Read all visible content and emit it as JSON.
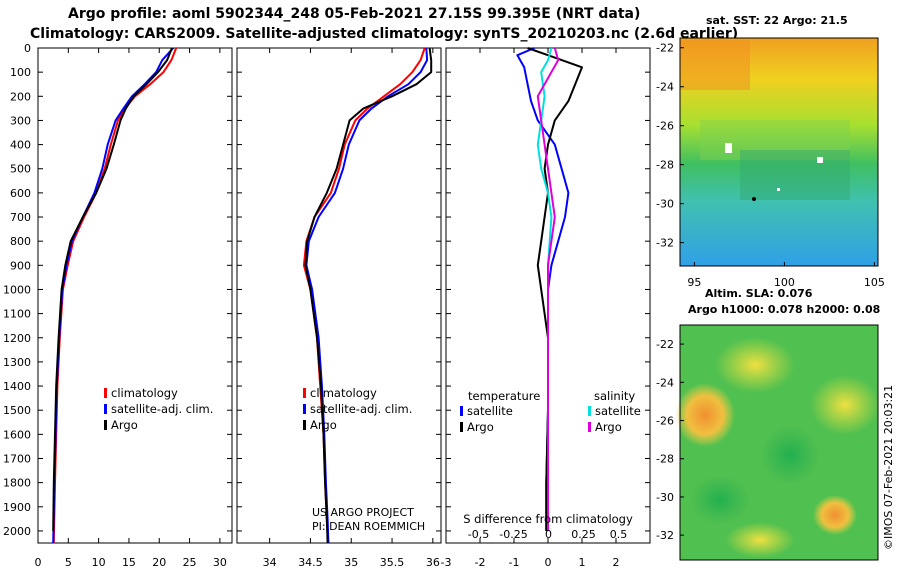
{
  "header": {
    "line1": "Argo profile: aoml 5902344_248 05-Feb-2021 27.15S 99.395E (NRT data)",
    "line2": "Climatology: CARS2009. Satellite-adjusted climatology: synTS_20210203.nc (2.6d earlier)"
  },
  "colors": {
    "climatology": "#ff0000",
    "satellite": "#0000ff",
    "argo": "#000000",
    "sat_salinity": "#00e0e0",
    "argo_salinity": "#dd00dd"
  },
  "depth_axis": {
    "ticks": [
      0,
      100,
      200,
      300,
      400,
      500,
      600,
      700,
      800,
      900,
      1000,
      1100,
      1200,
      1300,
      1400,
      1500,
      1600,
      1700,
      1800,
      1900,
      2000
    ],
    "range": [
      0,
      2050
    ]
  },
  "chart_data": [
    {
      "type": "line",
      "name": "temperature-profile",
      "xlabel": "",
      "ylabel": "",
      "xlim": [
        0,
        32
      ],
      "ylim": [
        2050,
        0
      ],
      "xticks": [
        "0",
        "5",
        "10",
        "15",
        "20",
        "25",
        "30"
      ],
      "xtick_values": [
        0,
        5,
        10,
        15,
        20,
        25,
        30
      ],
      "legend": [
        "climatology",
        "satellite-adj. clim.",
        "Argo"
      ],
      "series": [
        {
          "name": "climatology",
          "color": "#ff0000",
          "x": [
            22.8,
            22.0,
            20.7,
            18.5,
            16.0,
            14.3,
            13.2,
            12.0,
            11.0,
            9.6,
            7.6,
            5.8,
            4.9,
            4.1,
            3.6,
            3.2,
            3.0,
            2.8,
            2.6
          ],
          "y": [
            0,
            50,
            100,
            150,
            200,
            250,
            300,
            400,
            500,
            600,
            700,
            800,
            900,
            1000,
            1200,
            1400,
            1600,
            1800,
            2050
          ]
        },
        {
          "name": "satellite-adj. clim.",
          "color": "#0000ff",
          "x": [
            22.3,
            20.5,
            19.5,
            17.6,
            15.5,
            14.1,
            12.8,
            11.5,
            10.6,
            9.3,
            7.4,
            5.6,
            4.7,
            4.0,
            3.5,
            3.1,
            2.9,
            2.7,
            2.5
          ],
          "y": [
            0,
            50,
            100,
            150,
            200,
            250,
            300,
            400,
            500,
            600,
            700,
            800,
            900,
            1000,
            1200,
            1400,
            1600,
            1800,
            2050
          ]
        },
        {
          "name": "Argo",
          "color": "#000000",
          "x": [
            22.1,
            21.3,
            19.8,
            17.9,
            15.8,
            14.5,
            13.6,
            12.5,
            11.3,
            9.6,
            7.4,
            5.4,
            4.5,
            3.9,
            3.4,
            3.0,
            2.8,
            2.6,
            2.5
          ],
          "y": [
            0,
            50,
            100,
            150,
            200,
            250,
            300,
            400,
            500,
            600,
            700,
            800,
            900,
            1000,
            1200,
            1400,
            1600,
            1800,
            2000
          ]
        }
      ]
    },
    {
      "type": "line",
      "name": "salinity-profile",
      "xlim": [
        33.6,
        36.1
      ],
      "ylim": [
        2050,
        0
      ],
      "xticks": [
        "34",
        "34.5",
        "35",
        "35.5",
        "36"
      ],
      "xtick_values": [
        34,
        34.5,
        35,
        35.5,
        36
      ],
      "legend": [
        "climatology",
        "satellite-adj. clim.",
        "Argo"
      ],
      "series": [
        {
          "name": "climatology",
          "color": "#ff0000",
          "x": [
            35.9,
            35.85,
            35.75,
            35.6,
            35.4,
            35.2,
            35.05,
            34.92,
            34.85,
            34.75,
            34.55,
            34.45,
            34.42,
            34.5,
            34.58,
            34.62,
            34.66,
            34.68,
            34.7,
            34.72
          ],
          "y": [
            0,
            50,
            100,
            150,
            200,
            250,
            300,
            400,
            500,
            600,
            700,
            800,
            900,
            1000,
            1200,
            1400,
            1600,
            1800,
            1950,
            2050
          ]
        },
        {
          "name": "satellite-adj. clim.",
          "color": "#0000ff",
          "x": [
            35.92,
            35.93,
            35.85,
            35.7,
            35.45,
            35.25,
            35.1,
            34.97,
            34.9,
            34.8,
            34.6,
            34.48,
            34.45,
            34.52,
            34.6,
            34.64,
            34.67,
            34.69,
            34.71,
            34.72
          ],
          "y": [
            0,
            50,
            100,
            150,
            200,
            250,
            300,
            400,
            500,
            600,
            700,
            800,
            900,
            1000,
            1200,
            1400,
            1600,
            1800,
            1950,
            2050
          ]
        },
        {
          "name": "Argo",
          "color": "#000000",
          "x": [
            35.96,
            35.98,
            35.98,
            35.8,
            35.5,
            35.15,
            34.98,
            34.9,
            34.82,
            34.7,
            34.55,
            34.46,
            34.44,
            34.5,
            34.58,
            34.63,
            34.66,
            34.68,
            34.7,
            34.71
          ],
          "y": [
            0,
            50,
            100,
            150,
            200,
            250,
            300,
            400,
            500,
            600,
            700,
            800,
            900,
            1000,
            1200,
            1400,
            1600,
            1800,
            1950,
            2050
          ]
        }
      ]
    },
    {
      "type": "line",
      "name": "difference-profile",
      "xlabel": "S difference from climatology",
      "xlim": [
        -3.0,
        3.0
      ],
      "ylim": [
        2050,
        0
      ],
      "xticks": [
        "-3",
        "-2",
        "-1",
        "0",
        "1",
        "2"
      ],
      "xtick_values": [
        -3,
        -2,
        -1,
        0,
        1,
        2
      ],
      "top_xticks": [
        "-0.5",
        "-0.25",
        "0",
        "0.25",
        "0.5"
      ],
      "top_xtick_values": [
        -0.5,
        -0.25,
        0,
        0.25,
        0.5
      ],
      "legend_titles": [
        "temperature",
        "salinity"
      ],
      "legend": [
        "satellite",
        "Argo",
        "satellite",
        "Argo"
      ],
      "series": [
        {
          "name": "temperature satellite",
          "color": "#0000ff",
          "x": [
            -0.4,
            -0.9,
            -0.7,
            -0.6,
            -0.5,
            -0.3,
            0.2,
            0.4,
            0.6,
            0.5,
            0.3,
            0.1,
            0.0,
            0.0,
            0.0,
            -0.05,
            -0.05
          ],
          "y": [
            0,
            30,
            80,
            150,
            220,
            300,
            400,
            500,
            600,
            700,
            800,
            900,
            1000,
            1200,
            1500,
            1800,
            2000
          ]
        },
        {
          "name": "temperature Argo",
          "color": "#000000",
          "x": [
            -0.6,
            0.0,
            1.0,
            0.8,
            0.6,
            0.2,
            0.0,
            -0.1,
            0.0,
            -0.1,
            -0.2,
            -0.3,
            -0.2,
            0.0,
            0.0,
            -0.05,
            -0.05
          ],
          "y": [
            0,
            30,
            80,
            150,
            220,
            300,
            400,
            500,
            600,
            700,
            800,
            900,
            1000,
            1200,
            1500,
            1800,
            2000
          ]
        },
        {
          "name": "salinity satellite",
          "color": "#00e0e0",
          "x": [
            0.1,
            0.0,
            -0.2,
            -0.1,
            -0.2,
            -0.3,
            -0.2,
            0.0,
            0.1,
            0.05,
            0.0,
            0.0,
            0.0,
            0.0,
            0.0,
            0.0
          ],
          "y": [
            0,
            50,
            100,
            200,
            300,
            400,
            500,
            600,
            700,
            800,
            900,
            1000,
            1200,
            1500,
            1800,
            2000
          ]
        },
        {
          "name": "salinity Argo",
          "color": "#dd00dd",
          "x": [
            0.2,
            0.3,
            0.1,
            -0.3,
            -0.2,
            -0.1,
            0.0,
            0.1,
            0.2,
            0.1,
            0.0,
            0.0,
            0.0,
            0.0,
            0.0,
            0.0
          ],
          "y": [
            0,
            50,
            100,
            200,
            300,
            400,
            500,
            600,
            700,
            800,
            900,
            1000,
            1200,
            1500,
            1800,
            2000
          ]
        }
      ]
    }
  ],
  "credits": {
    "project": "US ARGO PROJECT",
    "pi": "PI: DEAN ROEMMICH"
  },
  "sst_map": {
    "title": "sat. SST: 22 Argo: 21.5",
    "lat_ticks": [
      "-22",
      "-24",
      "-26",
      "-28",
      "-30",
      "-32"
    ],
    "lat_values": [
      -22,
      -24,
      -26,
      -28,
      -30,
      -32
    ],
    "lon_ticks": [
      "95",
      "100",
      "105"
    ],
    "lon_values": [
      95,
      100,
      105
    ],
    "lat_range": [
      -21.5,
      -33.2
    ],
    "lon_range": [
      94.2,
      105.2
    ]
  },
  "sla_map": {
    "title1": "Altim. SLA: 0.076",
    "title2": "Argo h1000: 0.078 h2000: 0.08",
    "lat_ticks": [
      "-22",
      "-24",
      "-26",
      "-28",
      "-30",
      "-32"
    ],
    "lat_values": [
      -22,
      -24,
      -26,
      -28,
      -30,
      -32
    ],
    "lat_range": [
      -21.0,
      -33.3
    ]
  },
  "stamp": "©IMOS 07-Feb-2021 20:03:21"
}
